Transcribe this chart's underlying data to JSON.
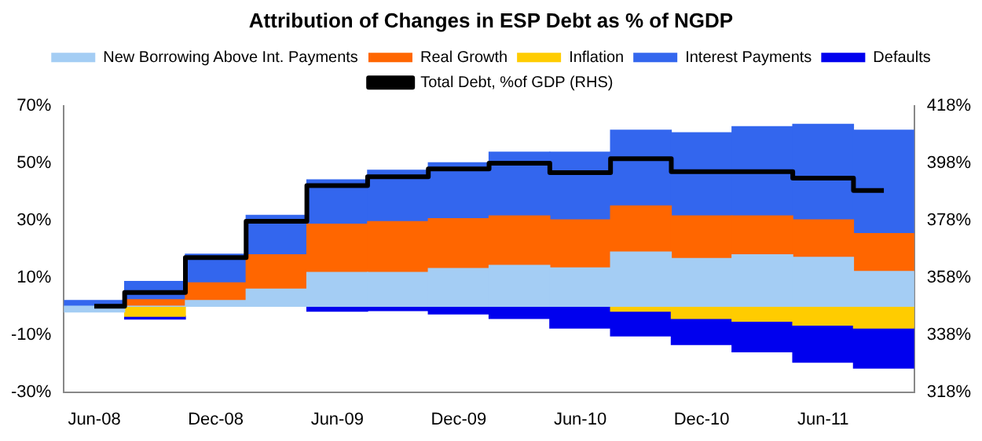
{
  "chart_data": {
    "type": "bar",
    "title": "Attribution of Changes in ESP Debt as % of NGDP",
    "stacked": true,
    "legend": "top",
    "categories": [
      "Jun-08",
      null,
      "Dec-08",
      null,
      "Jun-09",
      null,
      "Dec-09",
      null,
      "Jun-10",
      null,
      "Dec-10",
      null,
      "Jun-11",
      null
    ],
    "series": [
      {
        "name": "New Borrowing Above Int. Payments",
        "color": "#a4cdf4",
        "values": [
          -2,
          0,
          2,
          6,
          11.8,
          11.8,
          13.2,
          14.3,
          13.4,
          19,
          16.7,
          18,
          17.1,
          12.2
        ]
      },
      {
        "name": "Real Growth",
        "color": "#ff6600",
        "values": [
          null,
          2.3,
          6.2,
          12,
          16.9,
          17.8,
          17.4,
          17.3,
          16.8,
          16.1,
          14.9,
          13.6,
          13.1,
          13.2
        ]
      },
      {
        "name": "Inflation",
        "color": "#ffcc00",
        "values": [
          null,
          -3.5,
          null,
          null,
          null,
          null,
          null,
          null,
          null,
          -1.7,
          -4.3,
          -5.2,
          -6.6,
          -7.6
        ]
      },
      {
        "name": "Interest Payments",
        "color": "#3366ee",
        "values": [
          2,
          6.4,
          10,
          13.8,
          15.5,
          18,
          19.6,
          22.3,
          23.7,
          26.5,
          29.1,
          31.2,
          33.4,
          36.2
        ]
      },
      {
        "name": "Defaults",
        "color": "#0000ee",
        "values": [
          null,
          -1,
          null,
          null,
          -1.7,
          -1.5,
          -2.7,
          -4.3,
          -7.6,
          -8.7,
          -9.1,
          -10.7,
          -13,
          -14
        ]
      },
      {
        "name": "Total Debt, %of GDP (RHS)",
        "type": "step",
        "axis": "y2",
        "color": "#000000",
        "values": [
          348,
          352.8,
          365,
          377.7,
          390.2,
          393.3,
          396,
          398,
          394.7,
          399.6,
          395.1,
          395.1,
          392.8,
          388.5
        ]
      }
    ],
    "ylim": [
      -30,
      70
    ],
    "yticks": [
      {
        "value": -30,
        "label": "-30%"
      },
      {
        "value": -10,
        "label": "-10%"
      },
      {
        "value": 10,
        "label": "10%"
      },
      {
        "value": 30,
        "label": "30%"
      },
      {
        "value": 50,
        "label": "50%"
      },
      {
        "value": 70,
        "label": "70%"
      }
    ],
    "y2lim": [
      318,
      418
    ],
    "y2ticks": [
      {
        "value": 318,
        "label": "318%"
      },
      {
        "value": 338,
        "label": "338%"
      },
      {
        "value": 358,
        "label": "358%"
      },
      {
        "value": 378,
        "label": "378%"
      },
      {
        "value": 398,
        "label": "398%"
      },
      {
        "value": 418,
        "label": "418%"
      }
    ]
  }
}
